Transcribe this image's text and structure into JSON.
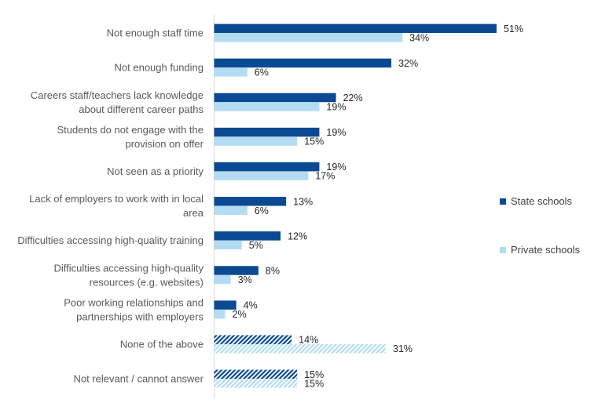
{
  "chart_data": {
    "type": "bar",
    "orientation": "horizontal",
    "categories": [
      [
        "Not enough staff time"
      ],
      [
        "Not enough funding"
      ],
      [
        "Careers staff/teachers lack knowledge",
        "about different career paths"
      ],
      [
        "Students do not engage with the",
        "provision on offer"
      ],
      [
        "Not seen as a priority"
      ],
      [
        "Lack of employers to work with in local",
        "area"
      ],
      [
        "Difficulties accessing high-quality training"
      ],
      [
        "Difficulties accessing high-quality",
        "resources (e.g. websites)"
      ],
      [
        "Poor working relationships and",
        "partnerships with employers"
      ],
      [
        "None of the above"
      ],
      [
        "Not relevant / cannot answer"
      ]
    ],
    "hatched_categories": [
      "None of the above",
      "Not relevant / cannot answer"
    ],
    "series": [
      {
        "name": "State schools",
        "color": "#0b4a92",
        "values": [
          51,
          32,
          22,
          19,
          19,
          13,
          12,
          8,
          4,
          14,
          15
        ]
      },
      {
        "name": "Private schools",
        "color": "#b3dcf2",
        "values": [
          34,
          6,
          19,
          15,
          17,
          6,
          5,
          3,
          2,
          31,
          15
        ]
      }
    ],
    "value_suffix": "%",
    "xlim": [
      0,
      60
    ],
    "legend_position": "right",
    "grid": false
  },
  "legend": {
    "state": "State schools",
    "private": "Private schools"
  }
}
